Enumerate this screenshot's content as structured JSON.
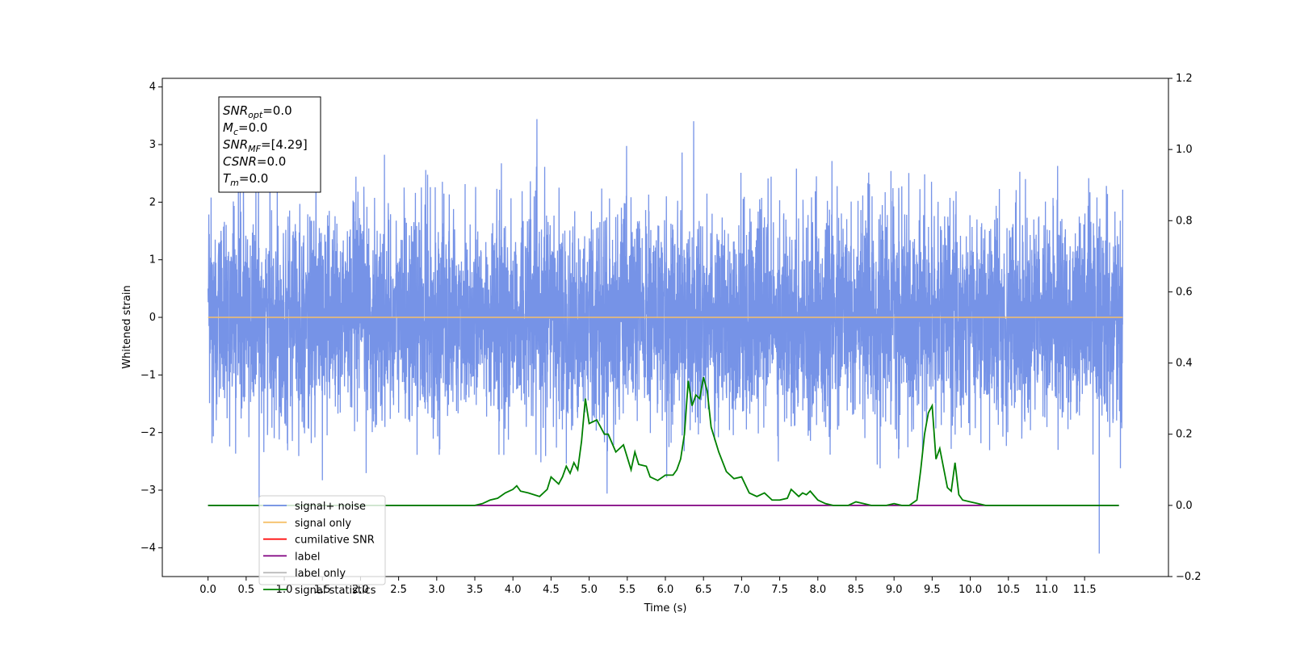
{
  "chart_data": {
    "type": "line",
    "xlabel": "Time (s)",
    "ylabel": "Whitened strain",
    "xlim": [
      -0.6,
      12.6
    ],
    "ylim": [
      -4.5,
      4.15
    ],
    "y2lim": [
      -0.2,
      1.2
    ],
    "xticks": [
      "0.0",
      "0.5",
      "1.0",
      "1.5",
      "2.0",
      "2.5",
      "3.0",
      "3.5",
      "4.0",
      "4.5",
      "5.0",
      "5.5",
      "6.0",
      "6.5",
      "7.0",
      "7.5",
      "8.0",
      "8.5",
      "9.0",
      "9.5",
      "10.0",
      "10.5",
      "11.0",
      "11.5"
    ],
    "yticks": [
      "4",
      "3",
      "2",
      "1",
      "0",
      "−1",
      "−2",
      "−3",
      "−4"
    ],
    "y2ticks": [
      "1.2",
      "1.0",
      "0.8",
      "0.6",
      "0.4",
      "0.2",
      "0.0",
      "−0.2"
    ],
    "annotation": [
      {
        "sym": "SNR",
        "sub": "opt",
        "val": "=0.0"
      },
      {
        "sym": "M",
        "sub": "c",
        "val": "=0.0"
      },
      {
        "sym": "SNR",
        "sub": "MF",
        "val": "=[4.29]"
      },
      {
        "sym": "CSNR",
        "sub": "",
        "val": "=0.0"
      },
      {
        "sym": "T",
        "sub": "m",
        "val": "=0.0"
      }
    ],
    "series": [
      {
        "name": "signal+ noise",
        "color": "#6f8de6",
        "axis": "left",
        "kind": "noise",
        "duration": 12.0,
        "sigma": 0.9
      },
      {
        "name": "signal only",
        "color": "#f5c06a",
        "axis": "left",
        "x": [
          0.0,
          12.0
        ],
        "y": [
          0.0,
          0.0
        ]
      },
      {
        "name": "cumilative SNR",
        "color": "#ff0000",
        "axis": "right",
        "x": [],
        "y": []
      },
      {
        "name": "label",
        "color": "#800080",
        "axis": "right",
        "x": [
          0.0,
          11.95
        ],
        "y": [
          0.0,
          0.0
        ]
      },
      {
        "name": "label only",
        "color": "#bbbbbb",
        "axis": "right",
        "x": [],
        "y": []
      },
      {
        "name": "signal statistics",
        "color": "#008000",
        "axis": "right",
        "x": [
          0.0,
          0.5,
          1.0,
          1.5,
          2.0,
          2.5,
          3.0,
          3.5,
          3.6,
          3.7,
          3.8,
          3.9,
          4.0,
          4.05,
          4.1,
          4.2,
          4.35,
          4.45,
          4.5,
          4.6,
          4.65,
          4.7,
          4.75,
          4.8,
          4.85,
          4.9,
          4.95,
          5.0,
          5.1,
          5.2,
          5.25,
          5.35,
          5.45,
          5.55,
          5.6,
          5.65,
          5.75,
          5.8,
          5.9,
          6.0,
          6.1,
          6.15,
          6.2,
          6.25,
          6.3,
          6.35,
          6.4,
          6.45,
          6.5,
          6.55,
          6.6,
          6.7,
          6.8,
          6.9,
          7.0,
          7.1,
          7.2,
          7.3,
          7.4,
          7.5,
          7.6,
          7.65,
          7.75,
          7.8,
          7.85,
          7.9,
          8.0,
          8.1,
          8.2,
          8.3,
          8.4,
          8.5,
          8.6,
          8.7,
          8.8,
          8.9,
          9.0,
          9.1,
          9.2,
          9.3,
          9.35,
          9.4,
          9.45,
          9.5,
          9.55,
          9.6,
          9.7,
          9.75,
          9.8,
          9.85,
          9.9,
          10.0,
          10.1,
          10.2,
          10.3,
          10.5,
          11.0,
          11.5,
          11.95
        ],
        "y": [
          0.0,
          0.0,
          0.0,
          0.0,
          0.0,
          0.0,
          0.0,
          0.0,
          0.005,
          0.015,
          0.02,
          0.035,
          0.045,
          0.055,
          0.04,
          0.035,
          0.025,
          0.045,
          0.08,
          0.06,
          0.08,
          0.11,
          0.09,
          0.12,
          0.1,
          0.18,
          0.3,
          0.23,
          0.24,
          0.2,
          0.2,
          0.15,
          0.17,
          0.1,
          0.15,
          0.115,
          0.11,
          0.08,
          0.07,
          0.085,
          0.085,
          0.1,
          0.13,
          0.2,
          0.35,
          0.28,
          0.31,
          0.3,
          0.36,
          0.32,
          0.22,
          0.15,
          0.095,
          0.075,
          0.08,
          0.035,
          0.025,
          0.035,
          0.015,
          0.015,
          0.02,
          0.045,
          0.025,
          0.035,
          0.03,
          0.04,
          0.015,
          0.005,
          0.0,
          0.0,
          0.0,
          0.01,
          0.005,
          0.0,
          0.0,
          0.0,
          0.005,
          0.0,
          0.0,
          0.015,
          0.1,
          0.2,
          0.26,
          0.28,
          0.13,
          0.16,
          0.05,
          0.04,
          0.12,
          0.03,
          0.015,
          0.01,
          0.005,
          0.0,
          0.0,
          0.0,
          0.0,
          0.0,
          0.0
        ]
      }
    ]
  }
}
